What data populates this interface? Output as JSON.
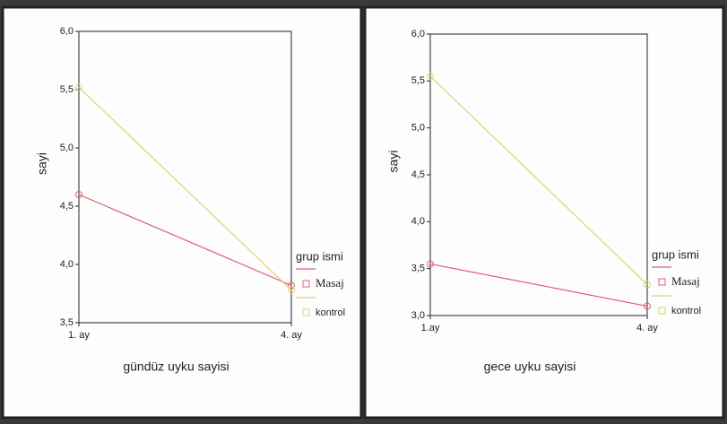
{
  "chart_data": [
    {
      "type": "line",
      "x_label": "gündüz uyku sayisi",
      "y_label": "sayi",
      "legend_title": "grup ismi",
      "categories": [
        "1. ay",
        "4. ay"
      ],
      "series": [
        {
          "name": "Masaj",
          "color": "#e0606e",
          "values": [
            4.6,
            3.82
          ]
        },
        {
          "name": "kontrol",
          "color": "#d6d676",
          "values": [
            5.52,
            3.78
          ]
        }
      ],
      "ylim": [
        3.5,
        6.0
      ],
      "yticks": [
        {
          "value": 3.5,
          "label": "3,5"
        },
        {
          "value": 4.0,
          "label": "4,0"
        },
        {
          "value": 4.5,
          "label": "4,5"
        },
        {
          "value": 5.0,
          "label": "5,0"
        },
        {
          "value": 5.5,
          "label": "5,5"
        },
        {
          "value": 6.0,
          "label": "6,0"
        }
      ],
      "grid": false,
      "legend": "right"
    },
    {
      "type": "line",
      "x_label": "gece uyku sayisi",
      "y_label": "sayi",
      "legend_title": "grup ismi",
      "categories": [
        "1.ay",
        "4. ay"
      ],
      "series": [
        {
          "name": "Masaj",
          "color": "#e0606e",
          "values": [
            3.55,
            3.1
          ]
        },
        {
          "name": "kontrol",
          "color": "#d6d676",
          "values": [
            5.55,
            3.33
          ]
        }
      ],
      "ylim": [
        3.0,
        6.0
      ],
      "yticks": [
        {
          "value": 3.0,
          "label": "3,0"
        },
        {
          "value": 3.5,
          "label": "3,5"
        },
        {
          "value": 4.0,
          "label": "4,0"
        },
        {
          "value": 4.5,
          "label": "4,5"
        },
        {
          "value": 5.0,
          "label": "5,0"
        },
        {
          "value": 5.5,
          "label": "5,5"
        },
        {
          "value": 6.0,
          "label": "6,0"
        }
      ],
      "grid": false,
      "legend": "right"
    }
  ]
}
